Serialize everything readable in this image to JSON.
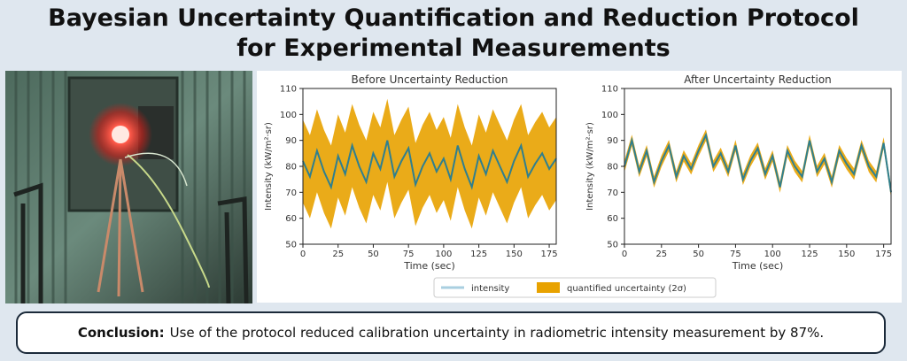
{
  "title_line1": "Bayesian Uncertainty Quantification and Reduction Protocol",
  "title_line2": "for Experimental Measurements",
  "conclusion": {
    "label": "Conclusion:",
    "text": "Use of the protocol reduced calibration uncertainty in radiometric intensity measurement by 87%."
  },
  "colors": {
    "intensity": "#2f7f8f",
    "uncertainty_band": "#e8a200"
  },
  "chart_data": [
    {
      "type": "line",
      "title": "Before Uncertainty Reduction",
      "xlabel": "Time (sec)",
      "ylabel": "Intensity (kW/m²·sr)",
      "xlim": [
        0,
        180
      ],
      "ylim": [
        50,
        110
      ],
      "xticks": [
        0,
        25,
        50,
        75,
        100,
        125,
        150,
        175
      ],
      "yticks": [
        50,
        60,
        70,
        80,
        90,
        100,
        110
      ],
      "grid": false,
      "x": [
        0,
        5,
        10,
        15,
        20,
        25,
        30,
        35,
        40,
        45,
        50,
        55,
        60,
        65,
        70,
        75,
        80,
        85,
        90,
        95,
        100,
        105,
        110,
        115,
        120,
        125,
        130,
        135,
        140,
        145,
        150,
        155,
        160,
        165,
        170,
        175,
        180
      ],
      "series": [
        {
          "name": "intensity",
          "values": [
            82,
            76,
            86,
            78,
            72,
            84,
            77,
            88,
            80,
            74,
            85,
            79,
            90,
            76,
            82,
            87,
            73,
            80,
            85,
            78,
            83,
            75,
            88,
            79,
            72,
            84,
            77,
            86,
            80,
            74,
            82,
            88,
            76,
            81,
            85,
            79,
            83
          ]
        },
        {
          "name": "quantified uncertainty (2σ)",
          "half_width": 16
        }
      ],
      "legend": "bottom"
    },
    {
      "type": "line",
      "title": "After Uncertainty Reduction",
      "xlabel": "Time (sec)",
      "ylabel": "Intensity (kW/m²·sr)",
      "xlim": [
        0,
        180
      ],
      "ylim": [
        50,
        110
      ],
      "xticks": [
        0,
        25,
        50,
        75,
        100,
        125,
        150,
        175
      ],
      "yticks": [
        50,
        60,
        70,
        80,
        90,
        100,
        110
      ],
      "grid": false,
      "x": [
        0,
        5,
        10,
        15,
        20,
        25,
        30,
        35,
        40,
        45,
        50,
        55,
        60,
        65,
        70,
        75,
        80,
        85,
        90,
        95,
        100,
        105,
        110,
        115,
        120,
        125,
        130,
        135,
        140,
        145,
        150,
        155,
        160,
        165,
        170,
        175,
        180
      ],
      "series": [
        {
          "name": "intensity",
          "values": [
            80,
            90,
            78,
            86,
            74,
            82,
            88,
            76,
            84,
            79,
            86,
            92,
            80,
            85,
            78,
            88,
            75,
            82,
            87,
            77,
            84,
            72,
            86,
            80,
            76,
            90,
            78,
            83,
            74,
            86,
            81,
            77,
            88,
            80,
            76,
            89,
            70
          ]
        },
        {
          "name": "quantified uncertainty (2σ)",
          "half_width": 2.2
        }
      ],
      "legend": "bottom"
    }
  ],
  "legend": {
    "items": [
      {
        "label": "intensity",
        "color": "#a9cfe0"
      },
      {
        "label": "quantified uncertainty (2σ)",
        "color": "#e8a200"
      }
    ]
  }
}
